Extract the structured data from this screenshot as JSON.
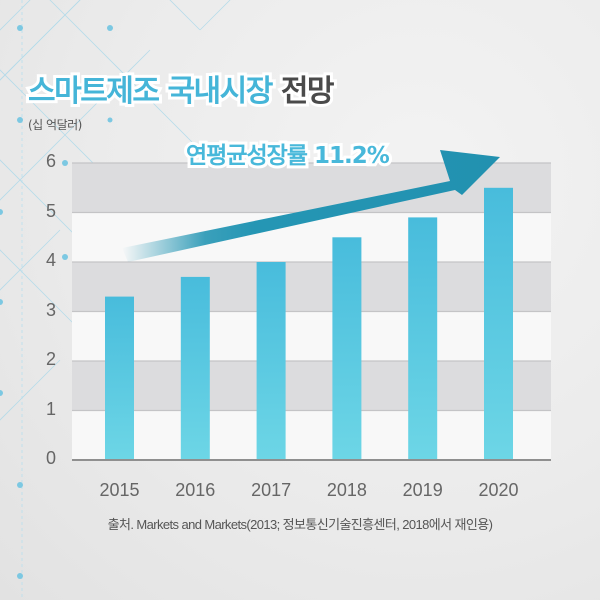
{
  "title": {
    "accent_text": "스마트제조 국내시장",
    "dark_text": "전망"
  },
  "unit_label": "(십 억달러)",
  "annotation": {
    "cagr_label": "연평균성장률 11.2%"
  },
  "source": "출처. Markets and Markets(2013; 정보통신기술진흥센터, 2018에서 재인용)",
  "colors": {
    "title_accent": "#45b5d8",
    "title_dark": "#4a4a4a",
    "bar_top": "#48bcdc",
    "bar_bottom": "#6dd6e6",
    "arrow": "#2596b4",
    "band_gray": "#dcdcde",
    "band_white": "#f8f8f8"
  },
  "chart_data": {
    "type": "bar",
    "title": "스마트제조 국내시장 전망",
    "subtitle": "(십 억달러)",
    "xlabel": "",
    "ylabel": "십 억달러",
    "categories": [
      "2015",
      "2016",
      "2017",
      "2018",
      "2019",
      "2020"
    ],
    "values": [
      3.3,
      3.7,
      4.0,
      4.5,
      4.9,
      5.5
    ],
    "ylim": [
      0,
      6
    ],
    "yticks": [
      "0",
      "1",
      "2",
      "3",
      "4",
      "5",
      "6"
    ],
    "grid": true,
    "grid_style": "alternating horizontal bands",
    "legend": null,
    "annotations": [
      "연평균성장률 11.2%",
      "upward trend arrow"
    ],
    "source": "출처. Markets and Markets(2013; 정보통신기술진흥센터, 2018에서 재인용)"
  }
}
